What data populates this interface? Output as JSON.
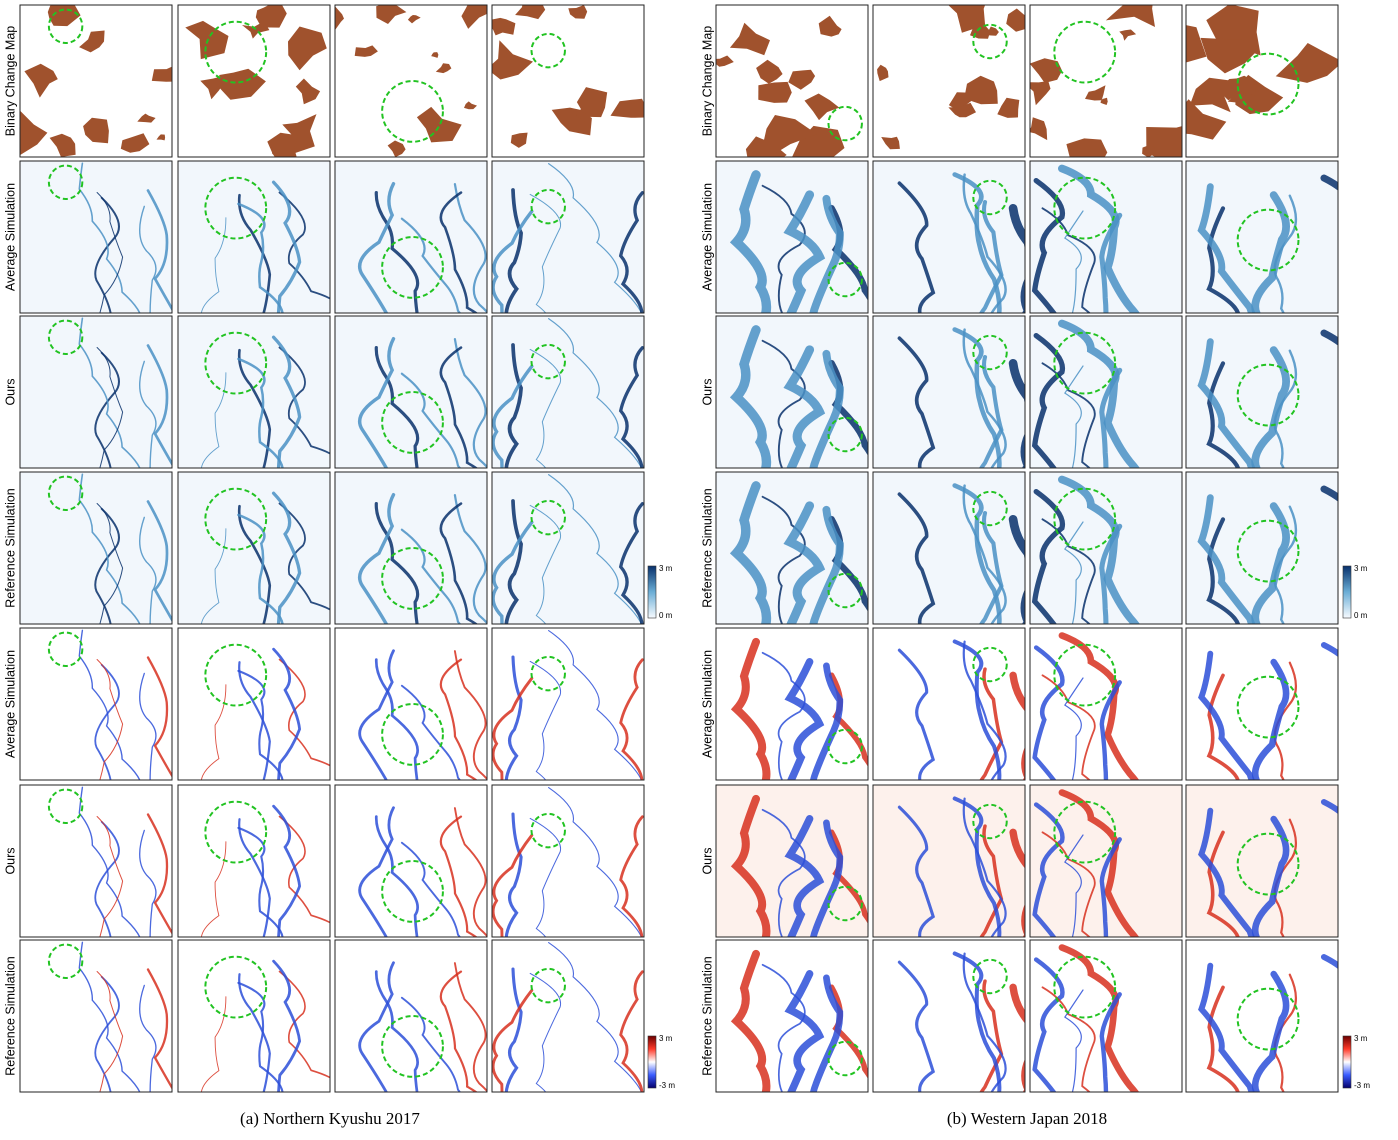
{
  "groups": [
    {
      "caption": "(a) Northern Kyushu 2017",
      "row_labels": [
        "Binary Change Map",
        "Average Simulation",
        "Ours",
        "Reference Simulation",
        "Average Simulation",
        "Ours",
        "Reference Simulation"
      ],
      "colorbar_depth": {
        "max": "3 m",
        "min": "0 m"
      },
      "colorbar_diff": {
        "max": "3 m",
        "min": "-3 m"
      }
    },
    {
      "caption": "(b) Western Japan 2018",
      "row_labels": [
        "Binary Change Map",
        "Average Simulation",
        "Ours",
        "Reference Simulation",
        "Average Simulation",
        "Ours",
        "Reference Simulation"
      ],
      "colorbar_depth": {
        "max": "3 m",
        "min": "0 m"
      },
      "colorbar_diff": {
        "max": "3 m",
        "min": "-3 m"
      }
    }
  ]
}
